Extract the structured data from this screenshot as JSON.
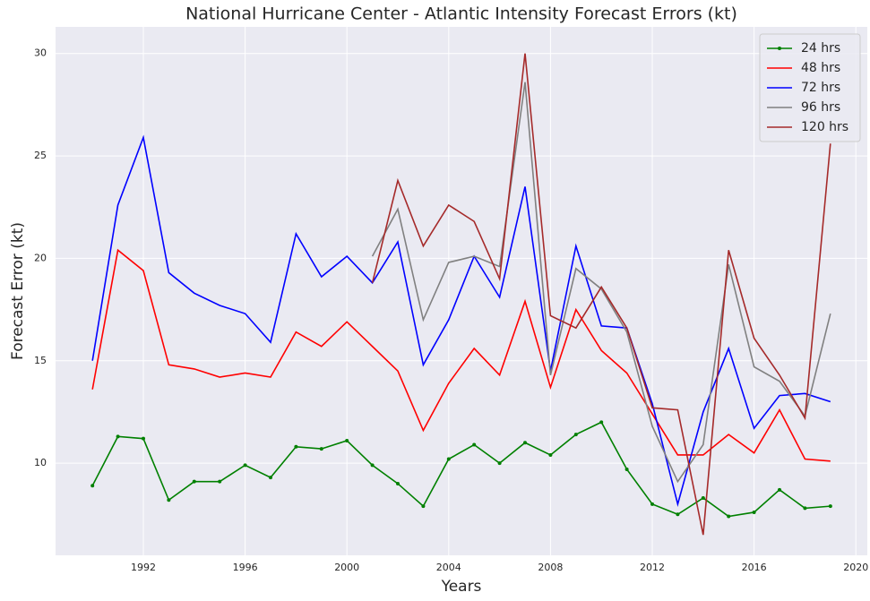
{
  "chart_data": {
    "type": "line",
    "title": "National Hurricane Center - Atlantic Intensity Forecast Errors (kt)",
    "x_label": "Years",
    "y_label": "Forecast Error (kt)",
    "x": [
      1990,
      1991,
      1992,
      1993,
      1994,
      1995,
      1996,
      1997,
      1998,
      1999,
      2000,
      2001,
      2002,
      2003,
      2004,
      2005,
      2006,
      2007,
      2008,
      2009,
      2010,
      2011,
      2012,
      2013,
      2014,
      2015,
      2016,
      2017,
      2018,
      2019
    ],
    "series": [
      {
        "name": "24 hrs",
        "color": "green",
        "marker": "o",
        "values": [
          8.9,
          11.3,
          11.2,
          8.2,
          9.1,
          9.1,
          9.9,
          9.3,
          10.8,
          10.7,
          11.1,
          9.9,
          9.0,
          7.9,
          10.2,
          10.9,
          10.0,
          11.0,
          10.4,
          11.4,
          12.0,
          9.7,
          8.0,
          7.5,
          8.3,
          7.4,
          7.6,
          8.7,
          7.8,
          7.9
        ]
      },
      {
        "name": "48 hrs",
        "color": "red",
        "values": [
          13.6,
          20.4,
          19.4,
          14.8,
          14.6,
          14.2,
          14.4,
          14.2,
          16.4,
          15.7,
          16.9,
          15.7,
          14.5,
          11.6,
          13.9,
          15.6,
          14.3,
          17.9,
          13.7,
          17.5,
          15.5,
          14.4,
          12.4,
          10.4,
          10.4,
          11.4,
          10.5,
          12.6,
          10.2,
          10.1
        ]
      },
      {
        "name": "72 hrs",
        "color": "blue",
        "values": [
          15.0,
          22.6,
          25.9,
          19.3,
          18.3,
          17.7,
          17.3,
          15.9,
          21.2,
          19.1,
          20.1,
          18.8,
          20.8,
          14.8,
          17.0,
          20.1,
          18.1,
          23.5,
          14.5,
          20.6,
          16.7,
          16.6,
          12.9,
          8.0,
          12.5,
          15.6,
          11.7,
          13.3,
          13.4,
          13.0
        ]
      },
      {
        "name": "96 hrs",
        "color": "gray",
        "values": [
          null,
          null,
          null,
          null,
          null,
          null,
          null,
          null,
          null,
          null,
          null,
          20.1,
          22.4,
          17.0,
          19.8,
          20.1,
          19.6,
          28.6,
          14.3,
          19.5,
          18.5,
          16.4,
          11.8,
          9.1,
          10.9,
          19.7,
          14.7,
          14.0,
          12.3,
          17.3
        ]
      },
      {
        "name": "120 hrs",
        "color": "brown",
        "values": [
          null,
          null,
          null,
          null,
          null,
          null,
          null,
          null,
          null,
          null,
          null,
          18.8,
          23.8,
          20.6,
          22.6,
          21.8,
          19.0,
          30.0,
          17.2,
          16.6,
          18.6,
          16.6,
          12.7,
          12.6,
          6.5,
          20.4,
          16.1,
          14.3,
          12.2,
          25.6
        ]
      }
    ],
    "xlim": [
      1988.55,
      2020.45
    ],
    "xticks": [
      1992,
      1996,
      2000,
      2004,
      2008,
      2012,
      2016,
      2020
    ],
    "ylim": [
      5.5,
      31.3
    ],
    "yticks": [
      10,
      15,
      20,
      25,
      30
    ],
    "grid": true,
    "legend": "upper right"
  }
}
